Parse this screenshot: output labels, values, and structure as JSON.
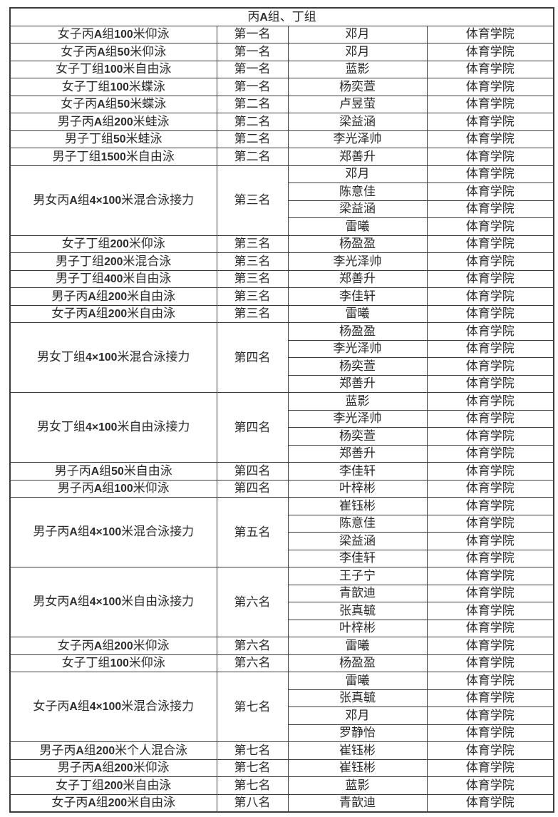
{
  "header": {
    "title": "丙A组、丁组"
  },
  "colors": {
    "background": "#ffffff",
    "border": "#3c3c3c",
    "text": "#2a2a2a"
  },
  "table": {
    "college_label": "体育学院",
    "rows": [
      {
        "event": "女子丙A组100米仰泳",
        "place": "第一名",
        "names": [
          "邓月"
        ],
        "college": "体育学院"
      },
      {
        "event": "女子丙A组50米仰泳",
        "place": "第一名",
        "names": [
          "邓月"
        ],
        "college": "体育学院"
      },
      {
        "event": "女子丁组100米自由泳",
        "place": "第一名",
        "names": [
          "蓝影"
        ],
        "college": "体育学院"
      },
      {
        "event": "女子丁组100米蝶泳",
        "place": "第一名",
        "names": [
          "杨奕萱"
        ],
        "college": "体育学院"
      },
      {
        "event": "女子丙A组50米蝶泳",
        "place": "第二名",
        "names": [
          "卢昱萤"
        ],
        "college": "体育学院"
      },
      {
        "event": "男子丙A组200米蛙泳",
        "place": "第二名",
        "names": [
          "梁益涵"
        ],
        "college": "体育学院"
      },
      {
        "event": "男子丁组50米蛙泳",
        "place": "第二名",
        "names": [
          "李光泽帅"
        ],
        "college": "体育学院"
      },
      {
        "event": "男子丁组1500米自由泳",
        "place": "第二名",
        "names": [
          "郑善升"
        ],
        "college": "体育学院"
      },
      {
        "event": "男女丙A组4×100米混合泳接力",
        "place": "第三名",
        "names": [
          "邓月",
          "陈意佳",
          "梁益涵",
          "雷曦"
        ],
        "college": "体育学院"
      },
      {
        "event": "女子丁组200米仰泳",
        "place": "第三名",
        "names": [
          "杨盈盈"
        ],
        "college": "体育学院"
      },
      {
        "event": "男子丁组200米混合泳",
        "place": "第三名",
        "names": [
          "李光泽帅"
        ],
        "college": "体育学院"
      },
      {
        "event": "男子丁组400米自由泳",
        "place": "第三名",
        "names": [
          "郑善升"
        ],
        "college": "体育学院"
      },
      {
        "event": "男子丙A组200米自由泳",
        "place": "第三名",
        "names": [
          "李佳轩"
        ],
        "college": "体育学院"
      },
      {
        "event": "女子丙A组200米自由泳",
        "place": "第三名",
        "names": [
          "雷曦"
        ],
        "college": "体育学院"
      },
      {
        "event": "男女丁组4×100米混合泳接力",
        "place": "第四名",
        "names": [
          "杨盈盈",
          "李光泽帅",
          "杨奕萱",
          "郑善升"
        ],
        "college": "体育学院"
      },
      {
        "event": "男女丁组4×100米自由泳接力",
        "place": "第四名",
        "names": [
          "蓝影",
          "李光泽帅",
          "杨奕萱",
          "郑善升"
        ],
        "college": "体育学院"
      },
      {
        "event": "男子丙A组50米自由泳",
        "place": "第四名",
        "names": [
          "李佳轩"
        ],
        "college": "体育学院"
      },
      {
        "event": "男子丙A组100米仰泳",
        "place": "第四名",
        "names": [
          "叶梓彬"
        ],
        "college": "体育学院"
      },
      {
        "event": "男子丙A组4×100米混合泳接力",
        "place": "第五名",
        "names": [
          "崔钰彬",
          "陈意佳",
          "梁益涵",
          "李佳轩"
        ],
        "college": "体育学院"
      },
      {
        "event": "男女丙A组4×100米自由泳接力",
        "place": "第六名",
        "names": [
          "王子宁",
          "青歆迪",
          "张真毓",
          "叶梓彬"
        ],
        "college": "体育学院"
      },
      {
        "event": "女子丙A组200米仰泳",
        "place": "第六名",
        "names": [
          "雷曦"
        ],
        "college": "体育学院"
      },
      {
        "event": "女子丁组100米仰泳",
        "place": "第六名",
        "names": [
          "杨盈盈"
        ],
        "college": "体育学院"
      },
      {
        "event": "女子丙A组4×100米混合泳接力",
        "place": "第七名",
        "names": [
          "雷曦",
          "张真毓",
          "邓月",
          "罗静怡"
        ],
        "college": "体育学院"
      },
      {
        "event": "男子丙A组200米个人混合泳",
        "place": "第七名",
        "names": [
          "崔钰彬"
        ],
        "college": "体育学院"
      },
      {
        "event": "男子丙A组200米仰泳",
        "place": "第七名",
        "names": [
          "崔钰彬"
        ],
        "college": "体育学院"
      },
      {
        "event": "女子丁组200米自由泳",
        "place": "第七名",
        "names": [
          "蓝影"
        ],
        "college": "体育学院"
      },
      {
        "event": "女子丙A组200米自由泳",
        "place": "第八名",
        "names": [
          "青歆迪"
        ],
        "college": "体育学院"
      }
    ]
  }
}
